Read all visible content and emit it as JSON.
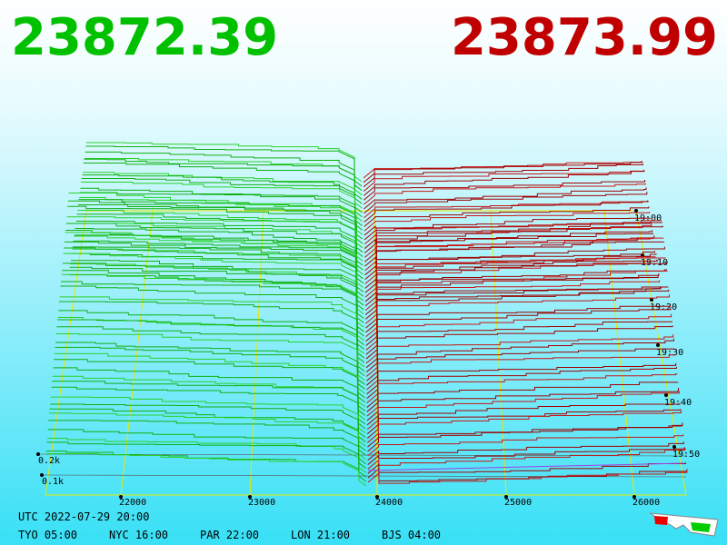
{
  "header": {
    "bid": "23872.39",
    "ask": "23873.99"
  },
  "price_axis": [
    "22000",
    "23000",
    "24000",
    "25000",
    "26000"
  ],
  "time_axis": [
    "19:00",
    "19:10",
    "19:20",
    "19:30",
    "19:40",
    "19:50"
  ],
  "depth_axis": [
    "0.2k",
    "0.1k"
  ],
  "footer": {
    "utc": "UTC 2022-07-29 20:00",
    "zones": [
      "TYO 05:00",
      "NYC 16:00",
      "PAR 22:00",
      "LON 21:00",
      "BJS 04:00"
    ]
  }
}
